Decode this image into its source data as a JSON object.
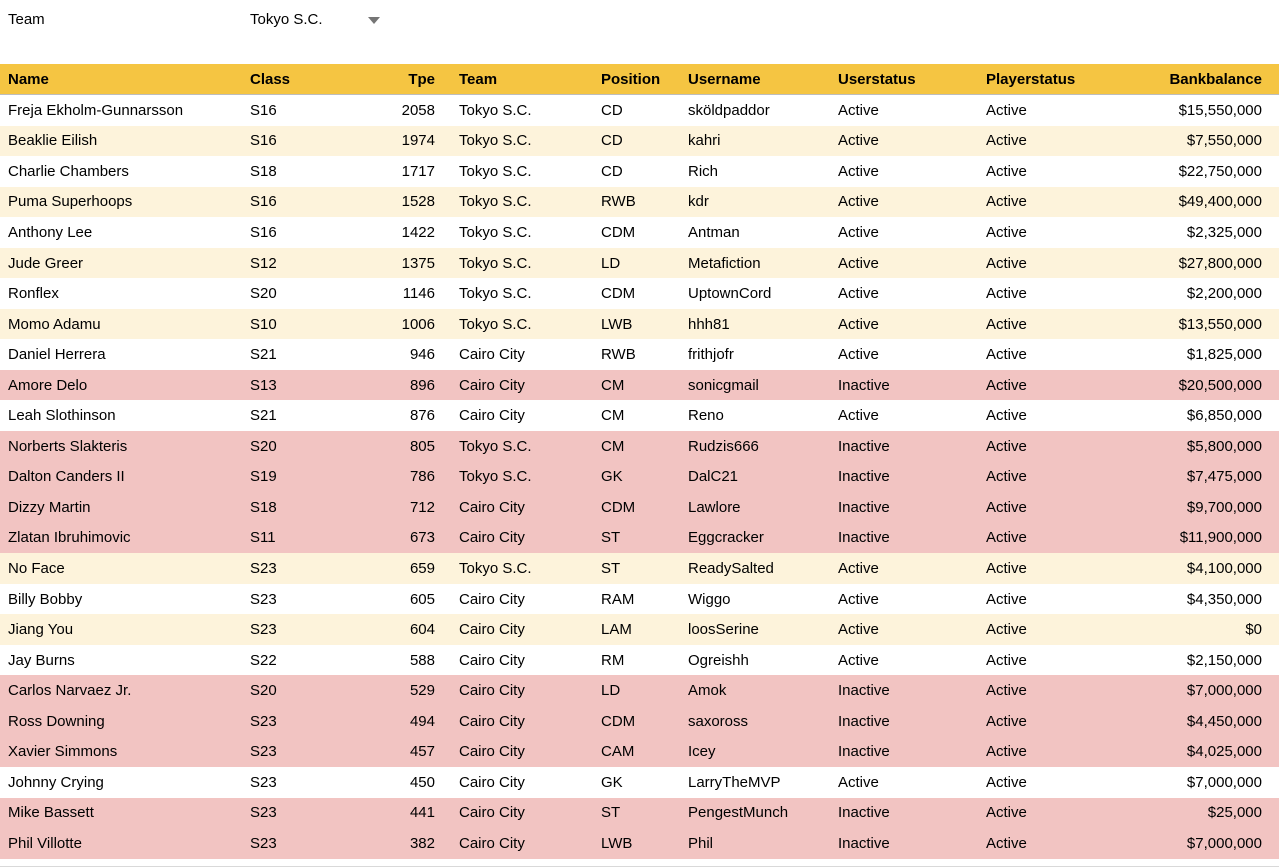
{
  "filter": {
    "label": "Team",
    "value": "Tokyo S.C."
  },
  "colors": {
    "header_bg": "#F5C542",
    "band_bg": "#FDF3DB",
    "inactive_bg": "#F2C4C2",
    "text": "#000000",
    "dropdown_arrow": "#757575",
    "header_border": "#BDBDBD",
    "bottom_line": "#D9D9D9"
  },
  "table": {
    "columns": [
      {
        "key": "name",
        "label": "Name",
        "align": "left"
      },
      {
        "key": "class",
        "label": "Class",
        "align": "left"
      },
      {
        "key": "tpe",
        "label": "Tpe",
        "align": "right"
      },
      {
        "key": "team",
        "label": "Team",
        "align": "left"
      },
      {
        "key": "position",
        "label": "Position",
        "align": "left"
      },
      {
        "key": "username",
        "label": "Username",
        "align": "left"
      },
      {
        "key": "userstatus",
        "label": "Userstatus",
        "align": "left"
      },
      {
        "key": "playerstatus",
        "label": "Playerstatus",
        "align": "left"
      },
      {
        "key": "bankbalance",
        "label": "Bankbalance",
        "align": "right"
      }
    ],
    "rows": [
      {
        "name": "Freja Ekholm-Gunnarsson",
        "class": "S16",
        "tpe": 2058,
        "team": "Tokyo S.C.",
        "position": "CD",
        "username": "sköldpaddor",
        "userstatus": "Active",
        "playerstatus": "Active",
        "bankbalance": "$15,550,000"
      },
      {
        "name": "Beaklie Eilish",
        "class": "S16",
        "tpe": 1974,
        "team": "Tokyo S.C.",
        "position": "CD",
        "username": "kahri",
        "userstatus": "Active",
        "playerstatus": "Active",
        "bankbalance": "$7,550,000"
      },
      {
        "name": "Charlie Chambers",
        "class": "S18",
        "tpe": 1717,
        "team": "Tokyo S.C.",
        "position": "CD",
        "username": "Rich",
        "userstatus": "Active",
        "playerstatus": "Active",
        "bankbalance": "$22,750,000"
      },
      {
        "name": "Puma Superhoops",
        "class": "S16",
        "tpe": 1528,
        "team": "Tokyo S.C.",
        "position": "RWB",
        "username": "kdr",
        "userstatus": "Active",
        "playerstatus": "Active",
        "bankbalance": "$49,400,000"
      },
      {
        "name": "Anthony Lee",
        "class": "S16",
        "tpe": 1422,
        "team": "Tokyo S.C.",
        "position": "CDM",
        "username": "Antman",
        "userstatus": "Active",
        "playerstatus": "Active",
        "bankbalance": "$2,325,000"
      },
      {
        "name": "Jude Greer",
        "class": "S12",
        "tpe": 1375,
        "team": "Tokyo S.C.",
        "position": "LD",
        "username": "Metafiction",
        "userstatus": "Active",
        "playerstatus": "Active",
        "bankbalance": "$27,800,000"
      },
      {
        "name": "Ronflex",
        "class": "S20",
        "tpe": 1146,
        "team": "Tokyo S.C.",
        "position": "CDM",
        "username": "UptownCord",
        "userstatus": "Active",
        "playerstatus": "Active",
        "bankbalance": "$2,200,000"
      },
      {
        "name": "Momo Adamu",
        "class": "S10",
        "tpe": 1006,
        "team": "Tokyo S.C.",
        "position": "LWB",
        "username": "hhh81",
        "userstatus": "Active",
        "playerstatus": "Active",
        "bankbalance": "$13,550,000"
      },
      {
        "name": "Daniel Herrera",
        "class": "S21",
        "tpe": 946,
        "team": "Cairo City",
        "position": "RWB",
        "username": "frithjofr",
        "userstatus": "Active",
        "playerstatus": "Active",
        "bankbalance": "$1,825,000"
      },
      {
        "name": "Amore Delo",
        "class": "S13",
        "tpe": 896,
        "team": "Cairo City",
        "position": "CM",
        "username": "sonicgmail",
        "userstatus": "Inactive",
        "playerstatus": "Active",
        "bankbalance": "$20,500,000"
      },
      {
        "name": "Leah Slothinson",
        "class": "S21",
        "tpe": 876,
        "team": "Cairo City",
        "position": "CM",
        "username": "Reno",
        "userstatus": "Active",
        "playerstatus": "Active",
        "bankbalance": "$6,850,000"
      },
      {
        "name": "Norberts Slakteris",
        "class": "S20",
        "tpe": 805,
        "team": "Tokyo S.C.",
        "position": "CM",
        "username": "Rudzis666",
        "userstatus": "Inactive",
        "playerstatus": "Active",
        "bankbalance": "$5,800,000"
      },
      {
        "name": "Dalton Canders II",
        "class": "S19",
        "tpe": 786,
        "team": "Tokyo S.C.",
        "position": "GK",
        "username": "DalC21",
        "userstatus": "Inactive",
        "playerstatus": "Active",
        "bankbalance": "$7,475,000"
      },
      {
        "name": "Dizzy Martin",
        "class": "S18",
        "tpe": 712,
        "team": "Cairo City",
        "position": "CDM",
        "username": "Lawlore",
        "userstatus": "Inactive",
        "playerstatus": "Active",
        "bankbalance": "$9,700,000"
      },
      {
        "name": "Zlatan Ibruhimovic",
        "class": "S11",
        "tpe": 673,
        "team": "Cairo City",
        "position": "ST",
        "username": "Eggcracker",
        "userstatus": "Inactive",
        "playerstatus": "Active",
        "bankbalance": "$11,900,000"
      },
      {
        "name": "No Face",
        "class": "S23",
        "tpe": 659,
        "team": "Tokyo S.C.",
        "position": "ST",
        "username": "ReadySalted",
        "userstatus": "Active",
        "playerstatus": "Active",
        "bankbalance": "$4,100,000"
      },
      {
        "name": "Billy Bobby",
        "class": "S23",
        "tpe": 605,
        "team": "Cairo City",
        "position": "RAM",
        "username": "Wiggo",
        "userstatus": "Active",
        "playerstatus": "Active",
        "bankbalance": "$4,350,000"
      },
      {
        "name": "Jiang You",
        "class": "S23",
        "tpe": 604,
        "team": "Cairo City",
        "position": "LAM",
        "username": "loosSerine",
        "userstatus": "Active",
        "playerstatus": "Active",
        "bankbalance": "$0"
      },
      {
        "name": "Jay Burns",
        "class": "S22",
        "tpe": 588,
        "team": "Cairo City",
        "position": "RM",
        "username": "Ogreishh",
        "userstatus": "Active",
        "playerstatus": "Active",
        "bankbalance": "$2,150,000"
      },
      {
        "name": "Carlos Narvaez Jr.",
        "class": "S20",
        "tpe": 529,
        "team": "Cairo City",
        "position": "LD",
        "username": "Amok",
        "userstatus": "Inactive",
        "playerstatus": "Active",
        "bankbalance": "$7,000,000"
      },
      {
        "name": "Ross Downing",
        "class": "S23",
        "tpe": 494,
        "team": "Cairo City",
        "position": "CDM",
        "username": "saxoross",
        "userstatus": "Inactive",
        "playerstatus": "Active",
        "bankbalance": "$4,450,000"
      },
      {
        "name": "Xavier Simmons",
        "class": "S23",
        "tpe": 457,
        "team": "Cairo City",
        "position": "CAM",
        "username": "Icey",
        "userstatus": "Inactive",
        "playerstatus": "Active",
        "bankbalance": "$4,025,000"
      },
      {
        "name": "Johnny Crying",
        "class": "S23",
        "tpe": 450,
        "team": "Cairo City",
        "position": "GK",
        "username": "LarryTheMVP",
        "userstatus": "Active",
        "playerstatus": "Active",
        "bankbalance": "$7,000,000"
      },
      {
        "name": "Mike Bassett",
        "class": "S23",
        "tpe": 441,
        "team": "Cairo City",
        "position": "ST",
        "username": "PengestMunch",
        "userstatus": "Inactive",
        "playerstatus": "Active",
        "bankbalance": "$25,000"
      },
      {
        "name": "Phil Villotte",
        "class": "S23",
        "tpe": 382,
        "team": "Cairo City",
        "position": "LWB",
        "username": "Phil",
        "userstatus": "Inactive",
        "playerstatus": "Active",
        "bankbalance": "$7,000,000"
      }
    ]
  }
}
